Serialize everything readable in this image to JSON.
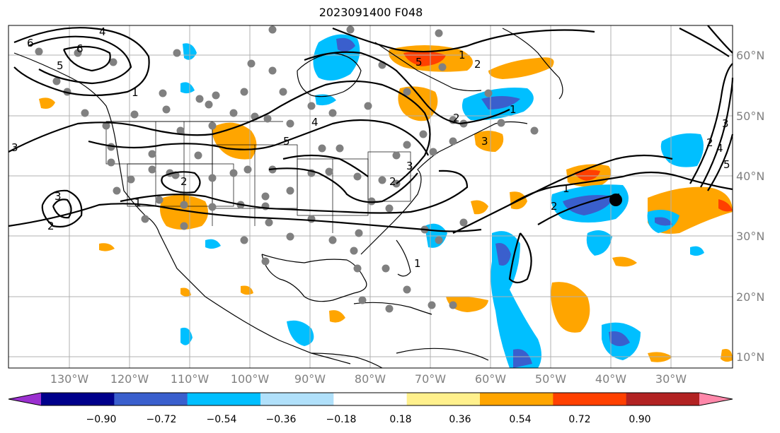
{
  "title": "2023091400 F048",
  "lat_labels": [
    "60°N",
    "50°N",
    "40°N",
    "30°N",
    "20°N",
    "10°N"
  ],
  "lon_labels": [
    "130°W",
    "120°W",
    "110°W",
    "100°W",
    "90°W",
    "80°W",
    "70°W",
    "60°W",
    "50°W",
    "40°W",
    "30°W"
  ],
  "colorbar": {
    "ticks": [
      "−0.90",
      "−0.72",
      "−0.54",
      "−0.36",
      "−0.18",
      "0.18",
      "0.36",
      "0.54",
      "0.72",
      "0.90"
    ],
    "colors": [
      "#9b30d0",
      "#00008b",
      "#3a5fcd",
      "#00bfff",
      "#b0e0fa",
      "#ffffff",
      "#fff08c",
      "#ffa500",
      "#ff4000",
      "#b22222",
      "#ff88aa"
    ]
  },
  "contour_labels": [
    "6",
    "4",
    "6",
    "5",
    "1",
    "5",
    "3",
    "2",
    "1",
    "2",
    "3",
    "4",
    "5",
    "2",
    "1",
    "1",
    "2",
    "3",
    "1",
    "3",
    "2",
    "4",
    "5",
    "2",
    "3",
    "1",
    "2"
  ],
  "marker": {
    "lat": 36,
    "lon": -40
  }
}
